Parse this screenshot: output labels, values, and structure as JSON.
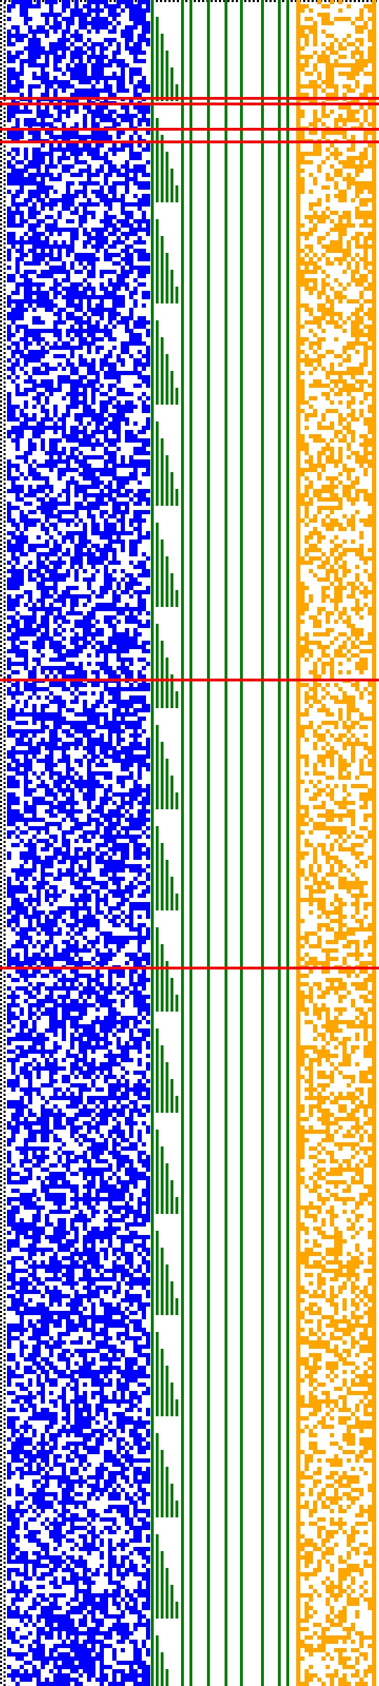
{
  "colors": {
    "background": "#ffffff",
    "left_border": "#000000",
    "blue_cells": "#0000ff",
    "green_lines": "#008000",
    "orange_cells": "#ffa500",
    "red_lines": "#ff0000"
  },
  "legend": []
}
